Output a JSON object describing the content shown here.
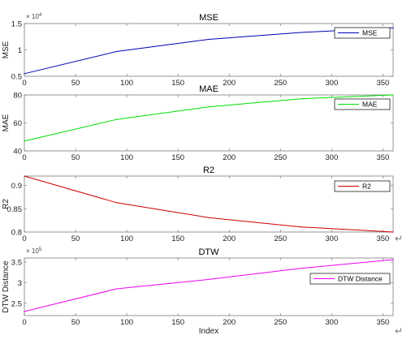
{
  "chart_data": [
    {
      "type": "line",
      "title": "MSE",
      "ylabel": "MSE",
      "xlabel": "",
      "multiplier": "× 10^4",
      "xlim": [
        0,
        360
      ],
      "ylim": [
        0.5,
        1.5
      ],
      "xticks": [
        "0",
        "50",
        "100",
        "150",
        "200",
        "250",
        "300",
        "350"
      ],
      "yticks": [
        "0.5",
        "1",
        "1.5"
      ],
      "legend": "top-right",
      "grid": false,
      "color": "#0000b4",
      "series": [
        {
          "name": "MSE",
          "x": [
            0,
            90,
            180,
            270,
            360
          ],
          "y": [
            0.55,
            0.97,
            1.2,
            1.33,
            1.42
          ]
        }
      ]
    },
    {
      "type": "line",
      "title": "MAE",
      "ylabel": "MAE",
      "xlabel": "",
      "xlim": [
        0,
        360
      ],
      "ylim": [
        40,
        80
      ],
      "xticks": [
        "0",
        "50",
        "100",
        "150",
        "200",
        "250",
        "300",
        "350"
      ],
      "yticks": [
        "40",
        "60",
        "80"
      ],
      "legend": "top-right",
      "grid": false,
      "color": "#00dd00",
      "series": [
        {
          "name": "MAE",
          "x": [
            0,
            90,
            180,
            270,
            360
          ],
          "y": [
            47,
            62.5,
            71.5,
            77.3,
            80
          ]
        }
      ]
    },
    {
      "type": "line",
      "title": "R2",
      "ylabel": "R2",
      "xlabel": "",
      "xlim": [
        0,
        360
      ],
      "ylim": [
        0.8,
        0.92
      ],
      "xticks": [
        "0",
        "50",
        "100",
        "150",
        "200",
        "250",
        "300",
        "350"
      ],
      "yticks": [
        "0.8",
        "0.85",
        "0.9"
      ],
      "legend": "top-right",
      "grid": false,
      "color": "#cc0000",
      "series": [
        {
          "name": "R2",
          "x": [
            0,
            90,
            180,
            270,
            360
          ],
          "y": [
            0.92,
            0.863,
            0.831,
            0.811,
            0.8
          ]
        }
      ]
    },
    {
      "type": "line",
      "title": "DTW",
      "ylabel": "DTW Distance",
      "xlabel": "Index",
      "multiplier": "× 10^5",
      "xlim": [
        0,
        360
      ],
      "ylim": [
        2.2,
        3.6
      ],
      "xticks": [
        "0",
        "50",
        "100",
        "150",
        "200",
        "250",
        "300",
        "350"
      ],
      "yticks": [
        "2.5",
        "3",
        "3.5"
      ],
      "legend": "top-right",
      "grid": false,
      "color": "#ee00ee",
      "series": [
        {
          "name": "DTW Distance",
          "x": [
            0,
            90,
            180,
            270,
            360
          ],
          "y": [
            2.3,
            2.85,
            3.08,
            3.35,
            3.56
          ]
        }
      ]
    }
  ],
  "marks": [
    "↵",
    "↵"
  ]
}
